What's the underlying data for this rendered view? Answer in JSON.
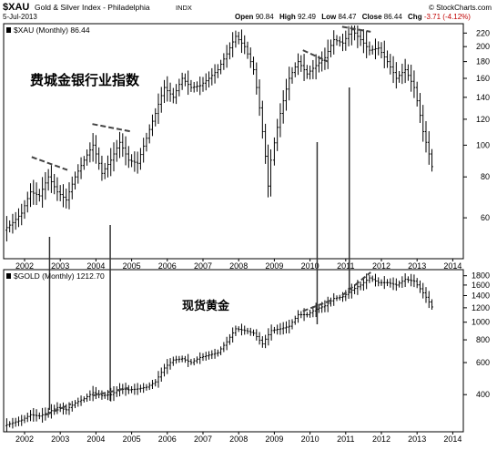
{
  "header": {
    "symbol": "$XAU",
    "description": "Gold & Silver Index - Philadelphia",
    "exchange": "INDX",
    "watermark": "© StockCharts.com",
    "date": "5-Jul-2013",
    "quote": {
      "open_label": "Open",
      "open": "90.84",
      "high_label": "High",
      "high": "92.49",
      "low_label": "Low",
      "low": "84.47",
      "close_label": "Close",
      "close": "86.44",
      "chg_label": "Chg",
      "chg": "-3.71 (-4.12%)"
    }
  },
  "chart_data": [
    {
      "type": "line",
      "panel": "top",
      "legend": "$XAU (Monthly) 86.44",
      "annotation": "费城金银行业指数",
      "x_ticks": [
        "2002",
        "2003",
        "2004",
        "2005",
        "2006",
        "2007",
        "2008",
        "2009",
        "2010",
        "2011",
        "2012",
        "2013",
        "2014"
      ],
      "y_ticks": [
        60,
        80,
        100,
        120,
        140,
        160,
        180,
        200,
        220
      ],
      "ylim": [
        45,
        232
      ],
      "log_scale": true,
      "x": [
        2001.5,
        2001.75,
        2002.0,
        2002.25,
        2002.5,
        2002.75,
        2003.0,
        2003.25,
        2003.5,
        2003.75,
        2004.0,
        2004.25,
        2004.5,
        2004.75,
        2005.0,
        2005.25,
        2005.5,
        2005.75,
        2006.0,
        2006.25,
        2006.5,
        2006.75,
        2007.0,
        2007.25,
        2007.5,
        2007.75,
        2008.0,
        2008.25,
        2008.5,
        2008.75,
        2008.9,
        2009.0,
        2009.25,
        2009.5,
        2009.75,
        2010.0,
        2010.25,
        2010.5,
        2010.75,
        2011.0,
        2011.25,
        2011.5,
        2011.75,
        2012.0,
        2012.25,
        2012.5,
        2012.75,
        2013.0,
        2013.25,
        2013.5
      ],
      "y": [
        55,
        58,
        62,
        72,
        70,
        80,
        72,
        68,
        80,
        90,
        100,
        82,
        90,
        102,
        90,
        88,
        105,
        125,
        150,
        140,
        160,
        150,
        152,
        160,
        170,
        190,
        215,
        200,
        170,
        110,
        75,
        90,
        125,
        160,
        180,
        165,
        175,
        185,
        210,
        205,
        225,
        210,
        195,
        198,
        180,
        160,
        170,
        150,
        110,
        86
      ]
    },
    {
      "type": "line",
      "panel": "bottom",
      "legend": "$GOLD (Monthly) 1212.70",
      "annotation": "现货黄金",
      "x_ticks": [
        "2002",
        "2003",
        "2004",
        "2005",
        "2006",
        "2007",
        "2008",
        "2009",
        "2010",
        "2011",
        "2012",
        "2013",
        "2014"
      ],
      "y_ticks": [
        400,
        600,
        800,
        1000,
        1200,
        1400,
        1600,
        1800
      ],
      "ylim": [
        250,
        1900
      ],
      "log_scale": true,
      "x": [
        2001.5,
        2001.75,
        2002.0,
        2002.25,
        2002.5,
        2002.75,
        2003.0,
        2003.25,
        2003.5,
        2003.75,
        2004.0,
        2004.25,
        2004.5,
        2004.75,
        2005.0,
        2005.25,
        2005.5,
        2005.75,
        2006.0,
        2006.25,
        2006.5,
        2006.75,
        2007.0,
        2007.25,
        2007.5,
        2007.75,
        2008.0,
        2008.25,
        2008.5,
        2008.75,
        2009.0,
        2009.25,
        2009.5,
        2009.75,
        2010.0,
        2010.25,
        2010.5,
        2010.75,
        2011.0,
        2011.25,
        2011.5,
        2011.75,
        2012.0,
        2012.25,
        2012.5,
        2012.75,
        2013.0,
        2013.25,
        2013.5
      ],
      "y": [
        270,
        280,
        290,
        310,
        305,
        320,
        340,
        330,
        360,
        380,
        410,
        395,
        400,
        430,
        425,
        430,
        440,
        470,
        560,
        620,
        630,
        600,
        640,
        660,
        680,
        780,
        920,
        900,
        870,
        760,
        900,
        920,
        950,
        1100,
        1100,
        1180,
        1230,
        1350,
        1380,
        1500,
        1600,
        1750,
        1650,
        1650,
        1600,
        1720,
        1680,
        1450,
        1212.7
      ]
    }
  ]
}
